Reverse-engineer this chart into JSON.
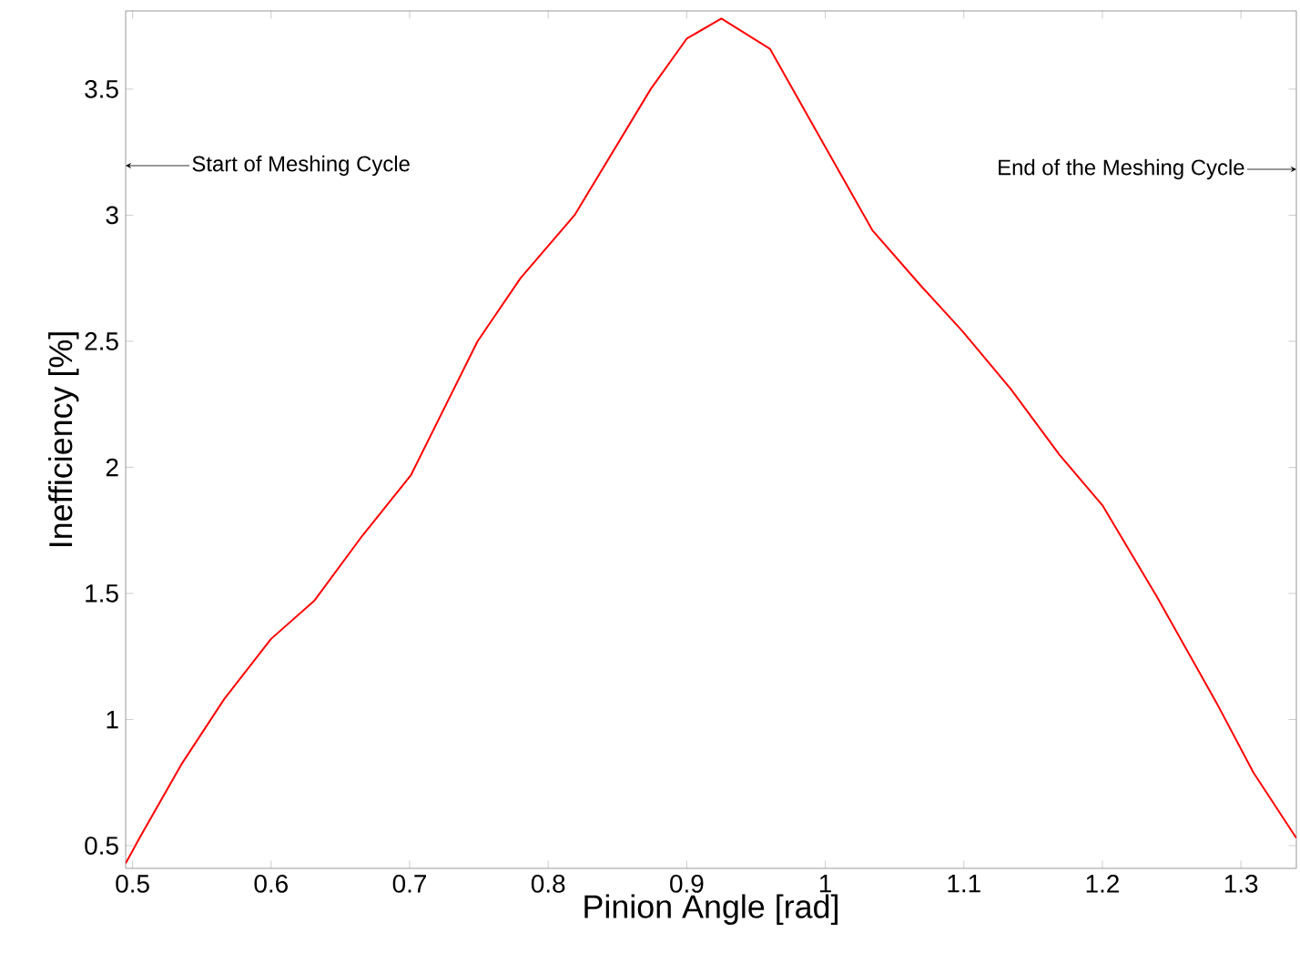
{
  "chart_data": {
    "type": "line",
    "xlabel": "Pinion Angle [rad]",
    "ylabel": "Inefficiency [%]",
    "x": [
      0.495,
      0.505,
      0.535,
      0.566,
      0.6,
      0.631,
      0.666,
      0.701,
      0.749,
      0.78,
      0.819,
      0.874,
      0.9,
      0.925,
      0.96,
      0.999,
      1.034,
      1.069,
      1.099,
      1.134,
      1.169,
      1.2,
      1.239,
      1.283,
      1.309,
      1.34
    ],
    "series": [
      {
        "color": "#ff0000",
        "values": [
          0.43,
          0.53,
          0.82,
          1.08,
          1.32,
          1.47,
          1.73,
          1.97,
          2.5,
          2.75,
          3.0,
          3.5,
          3.7,
          3.78,
          3.66,
          3.28,
          2.94,
          2.72,
          2.54,
          2.31,
          2.05,
          1.85,
          1.49,
          1.06,
          0.79,
          0.53
        ]
      }
    ],
    "xlim": [
      0.495,
      1.34
    ],
    "ylim": [
      0.41,
      3.81
    ],
    "xticks": [
      {
        "value": 0.5,
        "label": "0.5"
      },
      {
        "value": 0.6,
        "label": "0.6"
      },
      {
        "value": 0.7,
        "label": "0.7"
      },
      {
        "value": 0.8,
        "label": "0.8"
      },
      {
        "value": 0.9,
        "label": "0.9"
      },
      1,
      {
        "value": 1.1,
        "label": "1.1"
      },
      {
        "value": 1.2,
        "label": "1.2"
      },
      {
        "value": 1.3,
        "label": "1.3"
      }
    ],
    "yticks": [
      {
        "value": 0.5,
        "label": "0.5"
      },
      1,
      {
        "value": 1.5,
        "label": "1.5"
      },
      2,
      {
        "value": 2.5,
        "label": "2.5"
      },
      3,
      {
        "value": 3.5,
        "label": "3.5"
      }
    ],
    "annotations": [
      "Start of Meshing Cycle",
      "End of the Meshing Cycle"
    ],
    "grid": false,
    "marker": "none",
    "line_style": "solid"
  }
}
